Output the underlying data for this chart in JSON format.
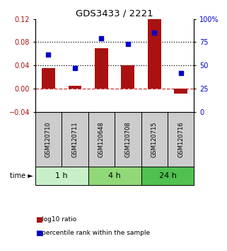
{
  "title": "GDS3433 / 2221",
  "samples": [
    "GSM120710",
    "GSM120711",
    "GSM120648",
    "GSM120708",
    "GSM120715",
    "GSM120716"
  ],
  "log10_ratio": [
    0.035,
    0.005,
    0.07,
    0.04,
    0.12,
    -0.008
  ],
  "percentile_rank": [
    62,
    47,
    79,
    73,
    85,
    42
  ],
  "time_groups": [
    {
      "label": "1 h",
      "start": 0,
      "end": 2,
      "color": "#c8f0c8"
    },
    {
      "label": "4 h",
      "start": 2,
      "end": 4,
      "color": "#90d878"
    },
    {
      "label": "24 h",
      "start": 4,
      "end": 6,
      "color": "#50c050"
    }
  ],
  "bar_color": "#aa1111",
  "dot_color": "#0000cc",
  "left_ylim": [
    -0.04,
    0.12
  ],
  "left_yticks": [
    -0.04,
    0,
    0.04,
    0.08,
    0.12
  ],
  "right_ylim": [
    0,
    100
  ],
  "right_yticks": [
    0,
    25,
    50,
    75,
    100
  ],
  "right_yticklabels": [
    "0",
    "25",
    "50",
    "75",
    "100%"
  ],
  "hline_dotted_vals": [
    0.04,
    0.08
  ],
  "hline_zero_color": "#cc3333",
  "background_color": "#ffffff",
  "sample_box_color": "#cccccc",
  "legend_red_label": "log10 ratio",
  "legend_blue_label": "percentile rank within the sample"
}
